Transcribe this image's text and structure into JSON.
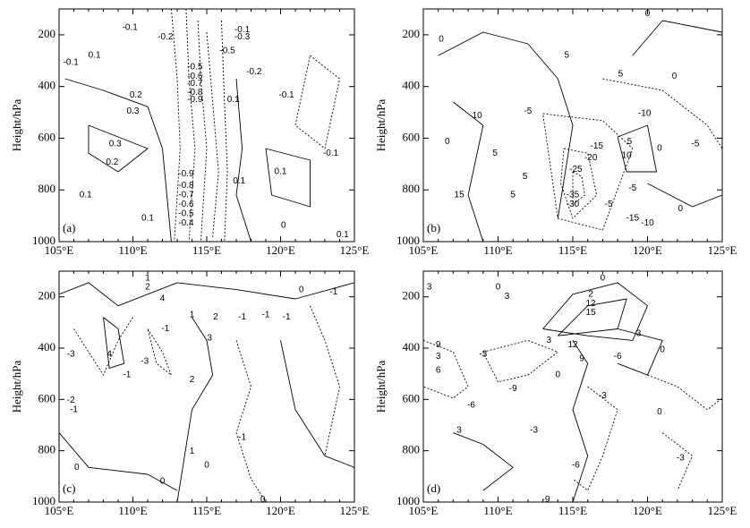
{
  "chart_data": [
    {
      "type": "contour",
      "label": "(a)",
      "ylabel": "Height/hPa",
      "xlim": [
        105,
        125
      ],
      "ylim": [
        1000,
        100
      ],
      "xticks": [
        {
          "value": 105,
          "label": "105°E"
        },
        {
          "value": 110,
          "label": "110°E"
        },
        {
          "value": 115,
          "label": "115°E"
        },
        {
          "value": 120,
          "label": "120°E"
        },
        {
          "value": 125,
          "label": "125°E"
        }
      ],
      "yticks": [
        200,
        400,
        600,
        800,
        1000
      ],
      "contour_labels": [
        -0.1,
        -0.2,
        -0.1,
        -0.3,
        -0.5,
        0.1,
        -0.1,
        -0.5,
        -0.6,
        -0.7,
        -0.8,
        -0.9,
        -0.2,
        -0.1,
        0.1,
        0.2,
        0.3,
        0.3,
        0.2,
        -0.1,
        0.1,
        -0.9,
        -0.8,
        -0.7,
        -0.6,
        -0.5,
        -0.4,
        0.1,
        0.1,
        0.1,
        0,
        0.1
      ]
    },
    {
      "type": "contour",
      "label": "(b)",
      "ylabel": "Height/hPa",
      "xlim": [
        105,
        125
      ],
      "ylim": [
        1000,
        100
      ],
      "xticks": [
        {
          "value": 105,
          "label": "105°E"
        },
        {
          "value": 110,
          "label": "110°E"
        },
        {
          "value": 115,
          "label": "115°E"
        },
        {
          "value": 120,
          "label": "120°E"
        },
        {
          "value": 125,
          "label": "125°E"
        }
      ],
      "yticks": [
        200,
        400,
        600,
        800,
        1000
      ],
      "contour_labels": [
        0,
        0,
        5,
        5,
        0,
        10,
        -5,
        -10,
        -5,
        0,
        5,
        -15,
        -20,
        -25,
        10,
        5,
        15,
        5,
        5,
        0,
        -5,
        -35,
        -30,
        -5,
        -15,
        -10,
        0
      ]
    },
    {
      "type": "contour",
      "label": "(c)",
      "ylabel": "Height/hPa",
      "xlim": [
        105,
        125
      ],
      "ylim": [
        1000,
        100
      ],
      "xticks": [
        {
          "value": 105,
          "label": "105°E"
        },
        {
          "value": 110,
          "label": "110°E"
        },
        {
          "value": 115,
          "label": "115°E"
        },
        {
          "value": 120,
          "label": "120°E"
        },
        {
          "value": 125,
          "label": "125°E"
        }
      ],
      "yticks": [
        200,
        400,
        600,
        800,
        1000
      ],
      "contour_labels": [
        1,
        2,
        4,
        1,
        -1,
        -1,
        2,
        -1,
        -1,
        0,
        -1,
        3,
        -3,
        4,
        -1,
        2,
        -3,
        -2,
        -1,
        -1,
        1,
        0,
        0,
        0,
        0
      ]
    },
    {
      "type": "contour",
      "label": "(d)",
      "ylabel": "Height/hPa",
      "xlim": [
        105,
        125
      ],
      "ylim": [
        1000,
        100
      ],
      "xticks": [
        {
          "value": 105,
          "label": "105°E"
        },
        {
          "value": 110,
          "label": "110°E"
        },
        {
          "value": 115,
          "label": "115°E"
        },
        {
          "value": 120,
          "label": "120°E"
        },
        {
          "value": 125,
          "label": "125°E"
        }
      ],
      "yticks": [
        200,
        400,
        600,
        800,
        1000
      ],
      "contour_labels": [
        0,
        3,
        0,
        3,
        2,
        12,
        15,
        9,
        3,
        6,
        3,
        -6,
        0,
        12,
        9,
        -3,
        3,
        -9,
        0,
        -3,
        0,
        -6,
        3,
        -3,
        -3,
        -6,
        -9
      ]
    }
  ]
}
